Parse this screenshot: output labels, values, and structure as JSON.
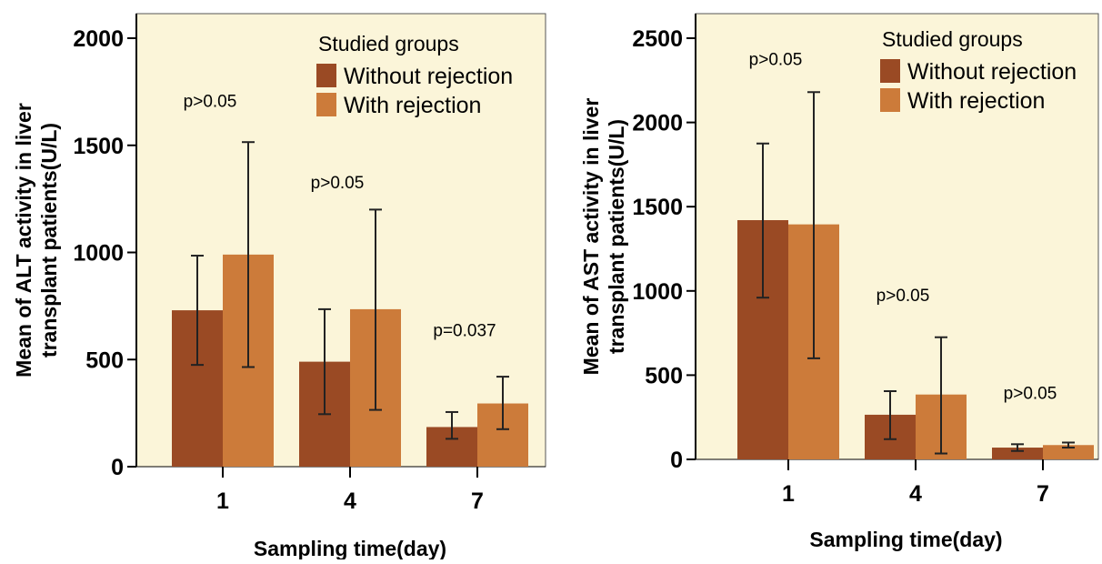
{
  "colors": {
    "plot_bg": "#fbf5d9",
    "without_rejection": "#9a4a24",
    "with_rejection": "#cc7b3a",
    "error_bar": "#222222"
  },
  "chart_data": [
    {
      "type": "bar",
      "title": "",
      "xlabel": "Sampling time(day)",
      "ylabel_lines": [
        "Mean of ALT activity in liver",
        "transplant patients(U/L)"
      ],
      "categories": [
        "1",
        "4",
        "7"
      ],
      "ylim": [
        0,
        2000
      ],
      "yticks": [
        0,
        500,
        1000,
        1500,
        2000
      ],
      "grid": false,
      "legend": {
        "title": "Studied groups",
        "placement": "top-right",
        "entries": [
          "Without rejection",
          "With rejection"
        ]
      },
      "series": [
        {
          "name": "Without rejection",
          "values": [
            730,
            490,
            185
          ],
          "error_low": [
            475,
            245,
            130
          ],
          "error_high": [
            985,
            735,
            255
          ]
        },
        {
          "name": "With rejection",
          "values": [
            990,
            735,
            295
          ],
          "error_low": [
            465,
            265,
            175
          ],
          "error_high": [
            1515,
            1200,
            420
          ]
        }
      ],
      "annotations": [
        {
          "category": "1",
          "value": 1680,
          "text": "p>0.05"
        },
        {
          "category": "4",
          "value": 1300,
          "text": "p>0.05"
        },
        {
          "category": "7",
          "value": 610,
          "text": "p=0.037"
        }
      ]
    },
    {
      "type": "bar",
      "title": "",
      "xlabel": "Sampling time(day)",
      "ylabel_lines": [
        "Mean of AST activity in liver",
        "transplant patients(U/L)"
      ],
      "categories": [
        "1",
        "4",
        "7"
      ],
      "ylim": [
        0,
        2500
      ],
      "yticks": [
        0,
        500,
        1000,
        1500,
        2000,
        2500
      ],
      "grid": false,
      "legend": {
        "title": "Studied groups",
        "placement": "top-right",
        "entries": [
          "Without rejection",
          "With rejection"
        ]
      },
      "series": [
        {
          "name": "Without rejection",
          "values": [
            1420,
            265,
            70
          ],
          "error_low": [
            960,
            120,
            50
          ],
          "error_high": [
            1875,
            405,
            90
          ]
        },
        {
          "name": "With rejection",
          "values": [
            1395,
            385,
            85
          ],
          "error_low": [
            600,
            35,
            70
          ],
          "error_high": [
            2180,
            725,
            100
          ]
        }
      ],
      "annotations": [
        {
          "category": "1",
          "value": 2340,
          "text": "p>0.05"
        },
        {
          "category": "4",
          "value": 940,
          "text": "p>0.05"
        },
        {
          "category": "7",
          "value": 360,
          "text": "p>0.05"
        }
      ]
    }
  ]
}
